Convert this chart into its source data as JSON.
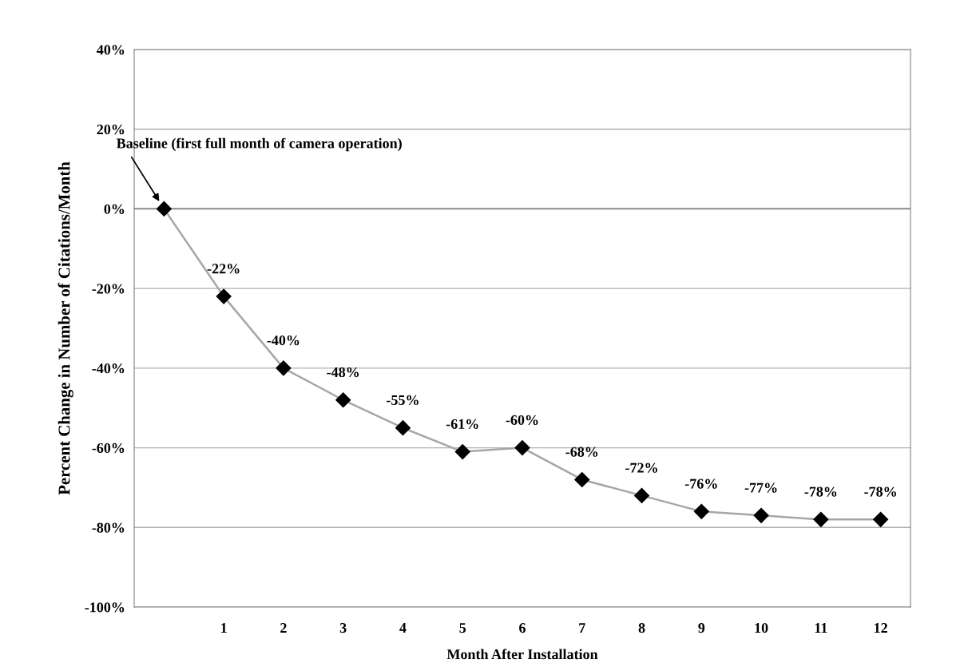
{
  "chart_data": {
    "type": "line",
    "xlabel": "Month After Installation",
    "ylabel": "Percent Change in Number of Citations/Month",
    "categories": [
      null,
      "1",
      "2",
      "3",
      "4",
      "5",
      "6",
      "7",
      "8",
      "9",
      "10",
      "11",
      "12"
    ],
    "series": [
      {
        "color": "#a6a6a6",
        "values": [
          0,
          -22,
          -40,
          -48,
          -55,
          -61,
          -60,
          -68,
          -72,
          -76,
          -77,
          -78,
          -78
        ],
        "value_labels": [
          null,
          "-22%",
          "-40%",
          "-48%",
          "-55%",
          "-61%",
          "-60%",
          "-68%",
          "-72%",
          "-76%",
          "-77%",
          "-78%",
          "-78%"
        ]
      }
    ],
    "marker": "diamond",
    "ylim": [
      -100,
      40
    ],
    "yticks": [
      {
        "value": -100,
        "label": "-100%"
      },
      {
        "value": -80,
        "label": "-80%"
      },
      {
        "value": -60,
        "label": "-60%"
      },
      {
        "value": -40,
        "label": "-40%"
      },
      {
        "value": -20,
        "label": "-20%"
      },
      {
        "value": 0,
        "label": "0%"
      },
      {
        "value": 20,
        "label": "20%"
      },
      {
        "value": 40,
        "label": "40%"
      }
    ],
    "grid": "y",
    "ref_lines": [
      {
        "axis": "y",
        "value": 0,
        "color": "#808080"
      }
    ],
    "annotations": [
      "Baseline (first full month of camera operation)"
    ]
  }
}
